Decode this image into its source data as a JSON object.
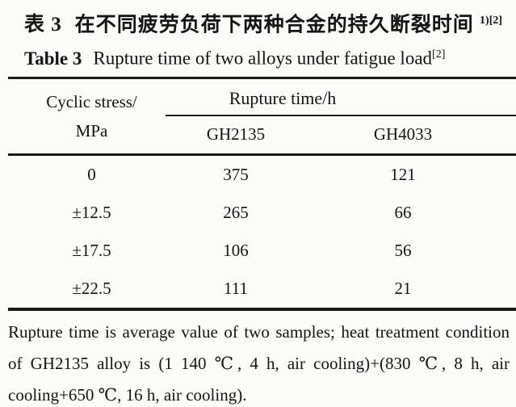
{
  "caption_zh": {
    "label": "表 3",
    "title": "在不同疲劳负荷下两种合金的持久断裂时间",
    "superscript": "1)[2]"
  },
  "caption_en": {
    "label": "Table 3",
    "title": "Rupture time of two alloys under fatigue load",
    "superscript": "[2]"
  },
  "table": {
    "stress_header_line1": "Cyclic stress/",
    "stress_header_line2": "MPa",
    "group_header": "Rupture time/h",
    "alloy_columns": [
      "GH2135",
      "GH4033"
    ],
    "rows": [
      {
        "stress": "0",
        "gh2135": "375",
        "gh4033": "121"
      },
      {
        "stress": "±12.5",
        "gh2135": "265",
        "gh4033": "66"
      },
      {
        "stress": "±17.5",
        "gh2135": "106",
        "gh4033": "56"
      },
      {
        "stress": "±22.5",
        "gh2135": "111",
        "gh4033": "21"
      }
    ]
  },
  "footnote": "Rupture time is average value of two samples; heat treatment condition of GH2135 alloy is (1 140 ℃, 4 h, air cooling)+(830 ℃, 8 h, air cooling+650 ℃, 16 h, air cooling).",
  "colors": {
    "background": "#fbfbf9",
    "text": "#141414",
    "rule": "#1a1a1a"
  },
  "chart_data": {
    "type": "table",
    "title": "Rupture time of two alloys under fatigue load",
    "columns": [
      "Cyclic stress/MPa",
      "GH2135 rupture time/h",
      "GH4033 rupture time/h"
    ],
    "rows": [
      [
        "0",
        375,
        121
      ],
      [
        "±12.5",
        265,
        66
      ],
      [
        "±17.5",
        106,
        56
      ],
      [
        "±22.5",
        111,
        21
      ]
    ]
  }
}
